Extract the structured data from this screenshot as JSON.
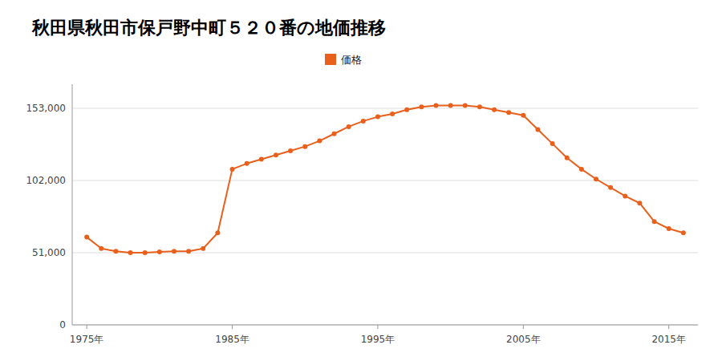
{
  "chart_data": {
    "type": "line",
    "title": "秋田県秋田市保戸野中町５２０番の地価推移",
    "x": [
      1975,
      1976,
      1977,
      1978,
      1979,
      1980,
      1981,
      1982,
      1983,
      1984,
      1985,
      1986,
      1987,
      1988,
      1989,
      1990,
      1991,
      1992,
      1993,
      1994,
      1995,
      1996,
      1997,
      1998,
      1999,
      2000,
      2001,
      2002,
      2003,
      2004,
      2005,
      2006,
      2007,
      2008,
      2009,
      2010,
      2011,
      2012,
      2013,
      2014,
      2015,
      2016
    ],
    "series": [
      {
        "name": "価格",
        "color": "#E8601C",
        "marker": "circle",
        "values": [
          62000,
          54000,
          52000,
          51000,
          51000,
          51500,
          52000,
          52000,
          54000,
          65000,
          110000,
          114000,
          117000,
          120000,
          123000,
          126000,
          130000,
          135000,
          140000,
          144000,
          147000,
          149000,
          152000,
          154000,
          155000,
          155000,
          155000,
          154000,
          152000,
          150000,
          148000,
          138000,
          128000,
          118000,
          110000,
          103000,
          97000,
          91000,
          86000,
          73000,
          68000,
          65000
        ]
      }
    ],
    "xlim": [
      1974,
      2017
    ],
    "xticks": [
      {
        "value": 1975,
        "label": "1975年"
      },
      {
        "value": 1985,
        "label": "1985年"
      },
      {
        "value": 1995,
        "label": "1995年"
      },
      {
        "value": 2005,
        "label": "2005年"
      },
      {
        "value": 2015,
        "label": "2015年"
      }
    ],
    "ylim": [
      0,
      170000
    ],
    "yticks": [
      0,
      {
        "value": 51000,
        "label": "51,000"
      },
      {
        "value": 102000,
        "label": "102,000"
      },
      {
        "value": 153000,
        "label": "153,000"
      }
    ],
    "grid": true,
    "legend": "top"
  }
}
